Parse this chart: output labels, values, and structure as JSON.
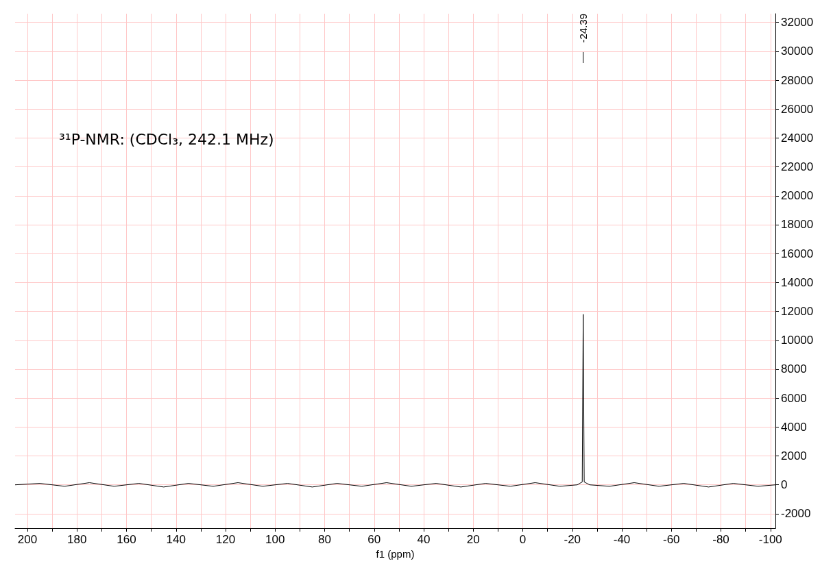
{
  "chart_data": {
    "type": "line",
    "xlabel": "f1 (ppm)",
    "annotations": [
      "³¹P-NMR: (CDCl₃, 242.1 MHz)",
      {
        "text": "-24.39",
        "x": -24.39
      }
    ],
    "series": [
      {
        "color": "#000000",
        "x": [
          205,
          195,
          185,
          175,
          165,
          155,
          145,
          135,
          125,
          115,
          105,
          95,
          85,
          75,
          65,
          55,
          45,
          35,
          25,
          15,
          5,
          -5,
          -15,
          -22,
          -24.0,
          -24.39,
          -24.8,
          -27,
          -35,
          -45,
          -55,
          -65,
          -75,
          -85,
          -95,
          -102
        ],
        "values": [
          0,
          100,
          -100,
          150,
          -100,
          100,
          -150,
          100,
          -100,
          150,
          -100,
          100,
          -150,
          100,
          -100,
          150,
          -100,
          100,
          -150,
          100,
          -100,
          150,
          -100,
          0,
          200,
          11800,
          200,
          0,
          -100,
          150,
          -100,
          100,
          -150,
          100,
          -100,
          0
        ]
      }
    ],
    "xlim": [
      205,
      -102
    ],
    "ylim": [
      -3000,
      32600
    ],
    "xticks": [
      200,
      {
        "value": 190,
        "label": null
      },
      180,
      {
        "value": 170,
        "label": null
      },
      160,
      {
        "value": 150,
        "label": null
      },
      140,
      {
        "value": 130,
        "label": null
      },
      120,
      {
        "value": 110,
        "label": null
      },
      100,
      {
        "value": 90,
        "label": null
      },
      80,
      {
        "value": 70,
        "label": null
      },
      60,
      {
        "value": 50,
        "label": null
      },
      40,
      {
        "value": 30,
        "label": null
      },
      20,
      {
        "value": 10,
        "label": null
      },
      0,
      {
        "value": -10,
        "label": null
      },
      -20,
      {
        "value": -30,
        "label": null
      },
      -40,
      {
        "value": -50,
        "label": null
      },
      -60,
      {
        "value": -70,
        "label": null
      },
      -80,
      {
        "value": -90,
        "label": null
      },
      -100
    ],
    "yticks": [
      -2000,
      0,
      2000,
      4000,
      6000,
      8000,
      10000,
      12000,
      14000,
      16000,
      18000,
      20000,
      22000,
      24000,
      26000,
      28000,
      30000,
      32000
    ],
    "grid": true,
    "marker": "none",
    "line_style": "solid"
  }
}
